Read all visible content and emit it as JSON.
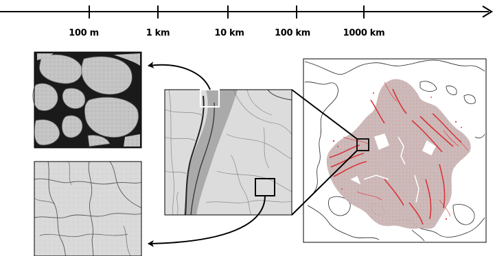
{
  "scale_axis": {
    "ticks": [
      {
        "label": "100 m"
      },
      {
        "label": "1 km"
      },
      {
        "label": "10 km"
      },
      {
        "label": "100 km"
      },
      {
        "label": "1000 km"
      }
    ]
  },
  "colors": {
    "ink": "#000000",
    "ice_gray": "#c9c9c9",
    "fracture_red": "#d9262b",
    "map_fill": "#c9b7b7",
    "highlight_box": "#ffffff"
  },
  "panels": {
    "floe_closeup": {
      "icon": "sea-ice-floes-image"
    },
    "fracture_closeup": {
      "icon": "sea-ice-fractures-image"
    },
    "regional": {
      "icon": "regional-sea-ice-image"
    },
    "basin_map": {
      "icon": "arctic-basin-fracture-map"
    }
  }
}
